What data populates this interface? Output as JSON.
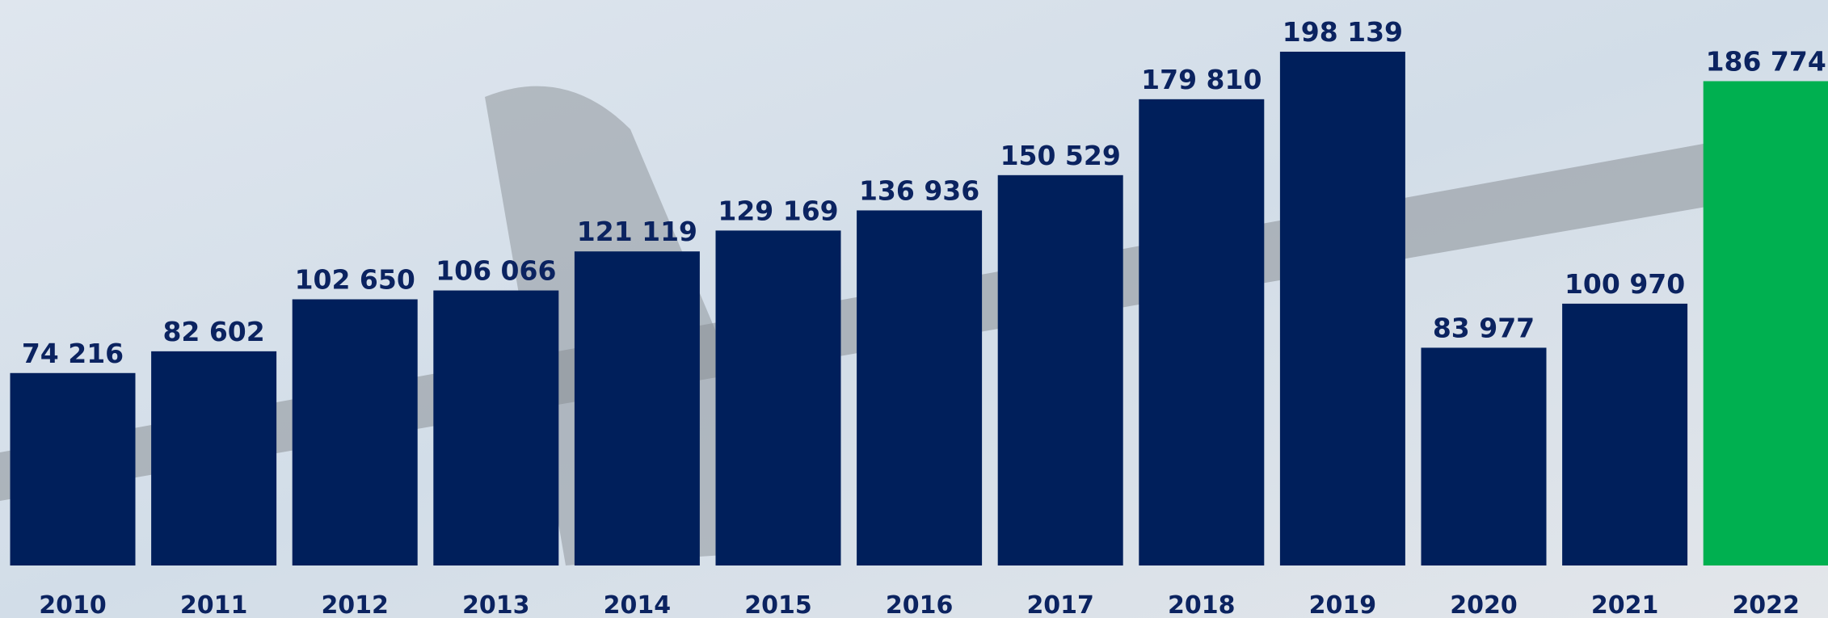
{
  "chart_data": {
    "type": "bar",
    "categories": [
      "2010",
      "2011",
      "2012",
      "2013",
      "2014",
      "2015",
      "2016",
      "2017",
      "2018",
      "2019",
      "2020",
      "2021",
      "2022"
    ],
    "values": [
      74216,
      82602,
      102650,
      106066,
      121119,
      129169,
      136936,
      150529,
      179810,
      198139,
      83977,
      100970,
      186774
    ],
    "value_labels": [
      "74 216",
      "82 602",
      "102 650",
      "106 066",
      "121 119",
      "129 169",
      "136 936",
      "150 529",
      "179 810",
      "198 139",
      "83 977",
      "100 970",
      "186 774"
    ],
    "colors": [
      "#001f5b",
      "#001f5b",
      "#001f5b",
      "#001f5b",
      "#001f5b",
      "#001f5b",
      "#001f5b",
      "#001f5b",
      "#001f5b",
      "#001f5b",
      "#001f5b",
      "#001f5b",
      "#00b050"
    ]
  }
}
